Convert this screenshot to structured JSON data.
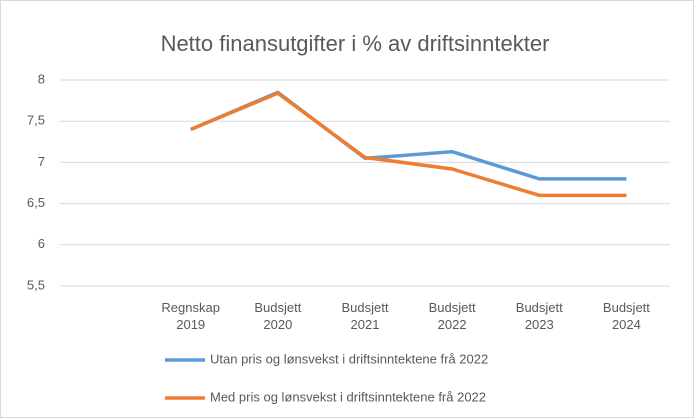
{
  "chart_data": {
    "type": "line",
    "title": "Netto finansutgifter i % av driftsinntekter",
    "categories": [
      null,
      "Regnskap 2019",
      "Budsjett 2020",
      "Budsjett 2021",
      "Budsjett 2022",
      "Budsjett 2023",
      "Budsjett 2024"
    ],
    "series": [
      {
        "name": "Utan pris og lønsvekst i driftsinntektene frå 2022",
        "color": "#5b9bd5",
        "values": [
          null,
          7.4,
          7.85,
          7.05,
          7.13,
          6.8,
          6.8
        ]
      },
      {
        "name": "Med pris og lønsvekst i driftsinntektene frå 2022",
        "color": "#ed7d31",
        "values": [
          null,
          7.4,
          7.84,
          7.06,
          6.92,
          6.6,
          6.6
        ]
      }
    ],
    "ylim": [
      5.5,
      8
    ],
    "yticks": [
      {
        "value": 5.5,
        "label": "5,5"
      },
      6,
      {
        "value": 6.5,
        "label": "6,5"
      },
      7,
      {
        "value": 7.5,
        "label": "7,5"
      },
      8
    ],
    "grid": true
  }
}
